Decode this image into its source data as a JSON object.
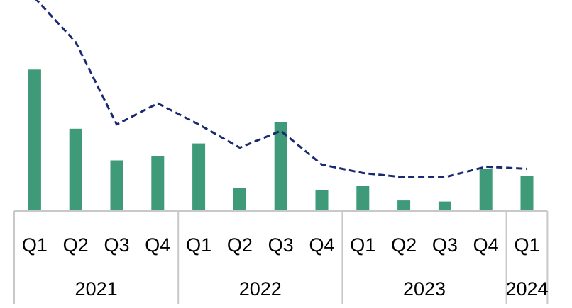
{
  "chart_data": {
    "type": "bar",
    "title": "",
    "xlabel": "",
    "ylabel": "",
    "ylim": [
      0,
      100
    ],
    "grid": false,
    "legend": "none",
    "categories": [
      "Q1",
      "Q2",
      "Q3",
      "Q4",
      "Q1",
      "Q2",
      "Q3",
      "Q4",
      "Q1",
      "Q2",
      "Q3",
      "Q4",
      "Q1"
    ],
    "groups": [
      {
        "label": "2021",
        "count": 4
      },
      {
        "label": "2022",
        "count": 4
      },
      {
        "label": "2023",
        "count": 4
      },
      {
        "label": "2024",
        "count": 1
      }
    ],
    "series": [
      {
        "type": "bar",
        "values": [
          67,
          39,
          24,
          26,
          32,
          11,
          42,
          10,
          12,
          5,
          4.5,
          20,
          16.5
        ]
      },
      {
        "type": "line",
        "style": "dashed",
        "values": [
          101,
          80,
          41,
          51,
          41,
          30,
          38,
          22,
          18,
          16,
          16,
          21,
          20
        ]
      }
    ],
    "colors": {
      "bar": "#3e9a78",
      "line": "#1a2a72",
      "axis": "#c8c8c8"
    }
  }
}
